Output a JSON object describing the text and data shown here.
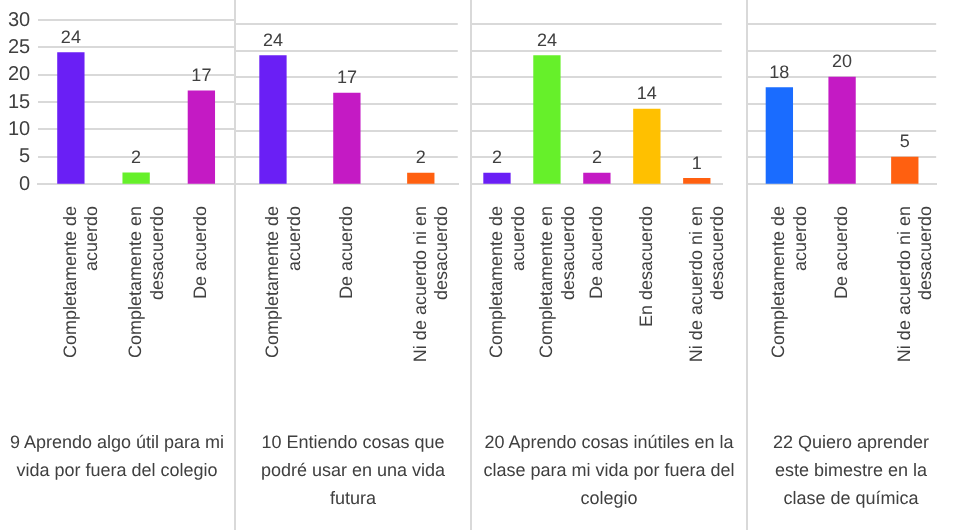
{
  "chart_data": [
    {
      "type": "bar",
      "xlabel": "9 Aprendo algo útil para mi vida por fuera del colegio",
      "categories": [
        "Completamente de acuerdo",
        "Completamente en desacuerdo",
        "De acuerdo"
      ],
      "values": [
        24,
        2,
        17
      ],
      "colors": [
        "#6a1ff5",
        "#66f02a",
        "#c41ac4"
      ],
      "ylim": [
        0,
        30
      ],
      "yticks": [
        0,
        5,
        10,
        15,
        20,
        25,
        30
      ],
      "grid": "y",
      "data_labels": true
    },
    {
      "type": "bar",
      "xlabel": "10 Entiendo cosas que podré usar en una vida futura",
      "categories": [
        "Completamente de acuerdo",
        "De acuerdo",
        "Ni de acuerdo ni en desacuerdo"
      ],
      "values": [
        24,
        17,
        2
      ],
      "colors": [
        "#6a1ff5",
        "#c41ac4",
        "#ff6010"
      ],
      "ylim": [
        0,
        30
      ],
      "yticks": [
        0,
        5,
        10,
        15,
        20,
        25,
        30
      ],
      "grid": "y",
      "data_labels": true,
      "tick_labels": "x"
    },
    {
      "type": "bar",
      "xlabel": "20 Aprendo cosas inútiles en la clase para mi vida por fuera del colegio",
      "categories": [
        "Completamente de acuerdo",
        "Completamente en desacuerdo",
        "De acuerdo",
        "En desacuerdo",
        "Ni de acuerdo ni en desacuerdo"
      ],
      "values": [
        2,
        24,
        2,
        14,
        1
      ],
      "colors": [
        "#6a1ff5",
        "#66f02a",
        "#c41ac4",
        "#ffc000",
        "#ff6010"
      ],
      "ylim": [
        0,
        30
      ],
      "yticks": [
        0,
        5,
        10,
        15,
        20,
        25,
        30
      ],
      "grid": "y",
      "data_labels": true,
      "tick_labels": "x"
    },
    {
      "type": "bar",
      "xlabel": "22 Quiero aprender este bimestre en la clase de química",
      "categories": [
        "Completamente de acuerdo",
        "De acuerdo",
        "Ni de acuerdo ni en desacuerdo"
      ],
      "values": [
        18,
        20,
        5
      ],
      "colors": [
        "#1a6cff",
        "#c41ac4",
        "#ff6010"
      ],
      "ylim": [
        0,
        30
      ],
      "yticks": [
        0,
        5,
        10,
        15,
        20,
        25,
        30
      ],
      "grid": "y",
      "data_labels": true,
      "tick_labels": "x"
    }
  ]
}
